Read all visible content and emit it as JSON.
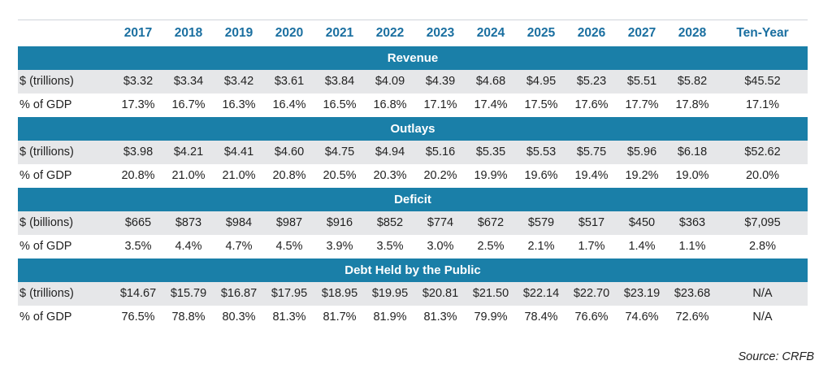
{
  "chart_data": {
    "type": "table",
    "columns": [
      "2017",
      "2018",
      "2019",
      "2020",
      "2021",
      "2022",
      "2023",
      "2024",
      "2025",
      "2026",
      "2027",
      "2028",
      "Ten-Year"
    ],
    "sections": [
      {
        "title": "Revenue",
        "rows": [
          {
            "label": "$ (trillions)",
            "values": [
              "$3.32",
              "$3.34",
              "$3.42",
              "$3.61",
              "$3.84",
              "$4.09",
              "$4.39",
              "$4.68",
              "$4.95",
              "$5.23",
              "$5.51",
              "$5.82",
              "$45.52"
            ]
          },
          {
            "label": "% of GDP",
            "values": [
              "17.3%",
              "16.7%",
              "16.3%",
              "16.4%",
              "16.5%",
              "16.8%",
              "17.1%",
              "17.4%",
              "17.5%",
              "17.6%",
              "17.7%",
              "17.8%",
              "17.1%"
            ]
          }
        ]
      },
      {
        "title": "Outlays",
        "rows": [
          {
            "label": "$ (trillions)",
            "values": [
              "$3.98",
              "$4.21",
              "$4.41",
              "$4.60",
              "$4.75",
              "$4.94",
              "$5.16",
              "$5.35",
              "$5.53",
              "$5.75",
              "$5.96",
              "$6.18",
              "$52.62"
            ]
          },
          {
            "label": "% of GDP",
            "values": [
              "20.8%",
              "21.0%",
              "21.0%",
              "20.8%",
              "20.5%",
              "20.3%",
              "20.2%",
              "19.9%",
              "19.6%",
              "19.4%",
              "19.2%",
              "19.0%",
              "20.0%"
            ]
          }
        ]
      },
      {
        "title": "Deficit",
        "rows": [
          {
            "label": "$ (billions)",
            "values": [
              "$665",
              "$873",
              "$984",
              "$987",
              "$916",
              "$852",
              "$774",
              "$672",
              "$579",
              "$517",
              "$450",
              "$363",
              "$7,095"
            ]
          },
          {
            "label": "% of GDP",
            "values": [
              "3.5%",
              "4.4%",
              "4.7%",
              "4.5%",
              "3.9%",
              "3.5%",
              "3.0%",
              "2.5%",
              "2.1%",
              "1.7%",
              "1.4%",
              "1.1%",
              "2.8%"
            ]
          }
        ]
      },
      {
        "title": "Debt Held by the Public",
        "rows": [
          {
            "label": "$ (trillions)",
            "values": [
              "$14.67",
              "$15.79",
              "$16.87",
              "$17.95",
              "$18.95",
              "$19.95",
              "$20.81",
              "$21.50",
              "$22.14",
              "$22.70",
              "$23.19",
              "$23.68",
              "N/A"
            ]
          },
          {
            "label": "% of GDP",
            "values": [
              "76.5%",
              "78.8%",
              "80.3%",
              "81.3%",
              "81.7%",
              "81.9%",
              "81.3%",
              "79.9%",
              "78.4%",
              "76.6%",
              "74.6%",
              "72.6%",
              "N/A"
            ]
          }
        ]
      }
    ]
  },
  "source": "Source: CRFB",
  "colors": {
    "header_text": "#1a6fa0",
    "section_band": "#1a7fa8",
    "shaded_row": "#e6e7e9",
    "text": "#222222"
  }
}
